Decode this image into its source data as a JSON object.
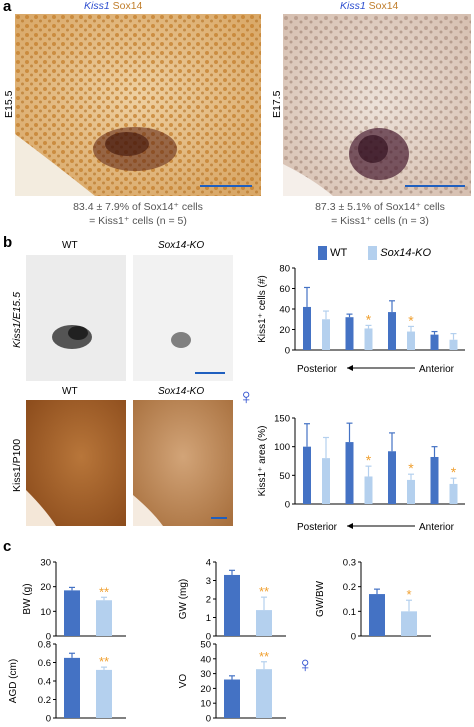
{
  "panel_a": {
    "letter": "a",
    "left": {
      "title_gene": "Kiss1",
      "title_protein": "Sox14",
      "stage": "E15.5",
      "caption_line1": "83.4 ± 7.9% of Sox14⁺ cells",
      "caption_line2": "= Kiss1⁺ cells (n = 5)"
    },
    "right": {
      "title_gene": "Kiss1",
      "title_protein": "Sox14",
      "stage": "E17.5",
      "caption_line1": "87.3 ± 5.1% of Sox14⁺ cells",
      "caption_line2": "= Kiss1⁺ cells (n = 3)"
    }
  },
  "panel_b": {
    "letter": "b",
    "wt_label": "WT",
    "ko_label": "Sox14-KO",
    "ko_label2": "Sox14-KO",
    "row1_label": "Kiss1/E15.5",
    "row2_label": "Kiss1/P100",
    "female_symbol": "♀",
    "legend": {
      "wt": "WT",
      "ko": "Sox14-KO"
    },
    "axis_posterior": "Posterior",
    "axis_anterior": "Anterior"
  },
  "panel_c": {
    "letter": "c",
    "female_symbol": "♀"
  },
  "colors": {
    "wt": "#4472c4",
    "ko": "#b4d0ee",
    "star": "#f0a030"
  },
  "chart_data": [
    {
      "type": "bar",
      "id": "b_cells",
      "ylabel": "Kiss1⁺ cells (#)",
      "ylim": [
        0,
        80
      ],
      "yticks": [
        0,
        20,
        40,
        60,
        80
      ],
      "series": [
        {
          "name": "WT",
          "values": [
            42,
            32,
            37,
            15
          ]
        },
        {
          "name": "Sox14-KO",
          "values": [
            30,
            21,
            18,
            10
          ]
        }
      ],
      "errors": {
        "WT": [
          19,
          3,
          11,
          3
        ],
        "Sox14-KO": [
          8,
          3,
          5,
          6
        ]
      },
      "significant": [
        false,
        true,
        true,
        false
      ],
      "star_label": "*"
    },
    {
      "type": "bar",
      "id": "b_area",
      "ylabel": "Kiss1⁺ area (%)",
      "ylim": [
        0,
        150
      ],
      "yticks": [
        0,
        50,
        100,
        150
      ],
      "series": [
        {
          "name": "WT",
          "values": [
            100,
            108,
            92,
            82
          ]
        },
        {
          "name": "Sox14-KO",
          "values": [
            80,
            48,
            42,
            35
          ]
        }
      ],
      "errors": {
        "WT": [
          40,
          33,
          32,
          18
        ],
        "Sox14-KO": [
          36,
          18,
          10,
          10
        ]
      },
      "significant": [
        false,
        true,
        true,
        true
      ],
      "star_label": "*"
    },
    {
      "type": "bar",
      "id": "c_bw",
      "ylabel": "BW (g)",
      "ylim": [
        0,
        30
      ],
      "yticks": [
        0,
        10,
        20,
        30
      ],
      "series": [
        {
          "name": "WT",
          "values": [
            18.5
          ]
        },
        {
          "name": "Sox14-KO",
          "values": [
            14.5
          ]
        }
      ],
      "errors": {
        "WT": [
          1.2
        ],
        "Sox14-KO": [
          1.2
        ]
      },
      "star_label": "**"
    },
    {
      "type": "bar",
      "id": "c_gw",
      "ylabel": "GW (mg)",
      "ylim": [
        0,
        4
      ],
      "yticks": [
        0,
        1,
        2,
        3,
        4
      ],
      "series": [
        {
          "name": "WT",
          "values": [
            3.3
          ]
        },
        {
          "name": "Sox14-KO",
          "values": [
            1.4
          ]
        }
      ],
      "errors": {
        "WT": [
          0.25
        ],
        "Sox14-KO": [
          0.7
        ]
      },
      "star_label": "**"
    },
    {
      "type": "bar",
      "id": "c_gwbw",
      "ylabel": "GW/BW",
      "ylim": [
        0,
        0.3
      ],
      "yticks": [
        0,
        0.1,
        0.2,
        0.3
      ],
      "series": [
        {
          "name": "WT",
          "values": [
            0.17
          ]
        },
        {
          "name": "Sox14-KO",
          "values": [
            0.1
          ]
        }
      ],
      "errors": {
        "WT": [
          0.02
        ],
        "Sox14-KO": [
          0.045
        ]
      },
      "star_label": "*"
    },
    {
      "type": "bar",
      "id": "c_agd",
      "ylabel": "AGD (cm)",
      "ylim": [
        0,
        0.8
      ],
      "yticks": [
        0,
        0.2,
        0.4,
        0.6,
        0.8
      ],
      "series": [
        {
          "name": "WT",
          "values": [
            0.65
          ]
        },
        {
          "name": "Sox14-KO",
          "values": [
            0.52
          ]
        }
      ],
      "errors": {
        "WT": [
          0.05
        ],
        "Sox14-KO": [
          0.03
        ]
      },
      "star_label": "**"
    },
    {
      "type": "bar",
      "id": "c_vo",
      "ylabel": "VO",
      "ylim": [
        0,
        50
      ],
      "yticks": [
        0,
        10,
        20,
        30,
        40,
        50
      ],
      "series": [
        {
          "name": "WT",
          "values": [
            26
          ]
        },
        {
          "name": "Sox14-KO",
          "values": [
            33
          ]
        }
      ],
      "errors": {
        "WT": [
          2.5
        ],
        "Sox14-KO": [
          5
        ]
      },
      "star_label": "**"
    }
  ]
}
